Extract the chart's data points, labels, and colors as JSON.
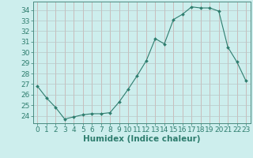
{
  "x": [
    0,
    1,
    2,
    3,
    4,
    5,
    6,
    7,
    8,
    9,
    10,
    11,
    12,
    13,
    14,
    15,
    16,
    17,
    18,
    19,
    20,
    21,
    22,
    23
  ],
  "y": [
    26.8,
    25.7,
    24.8,
    23.7,
    23.9,
    24.1,
    24.2,
    24.2,
    24.3,
    25.3,
    26.5,
    27.8,
    29.2,
    31.3,
    30.8,
    33.1,
    33.6,
    34.3,
    34.2,
    34.2,
    33.9,
    30.5,
    29.1,
    27.3
  ],
  "xlabel": "Humidex (Indice chaleur)",
  "xlim": [
    -0.5,
    23.5
  ],
  "ylim": [
    23.3,
    34.8
  ],
  "yticks": [
    24,
    25,
    26,
    27,
    28,
    29,
    30,
    31,
    32,
    33,
    34
  ],
  "xticks": [
    0,
    1,
    2,
    3,
    4,
    5,
    6,
    7,
    8,
    9,
    10,
    11,
    12,
    13,
    14,
    15,
    16,
    17,
    18,
    19,
    20,
    21,
    22,
    23
  ],
  "line_color": "#2e7d6e",
  "bg_color": "#cdeeed",
  "grid_v_color": "#c8a8a8",
  "grid_h_color": "#b8c8c8",
  "tick_color": "#2e7d6e",
  "label_fontsize": 7.5,
  "tick_fontsize": 6.5
}
